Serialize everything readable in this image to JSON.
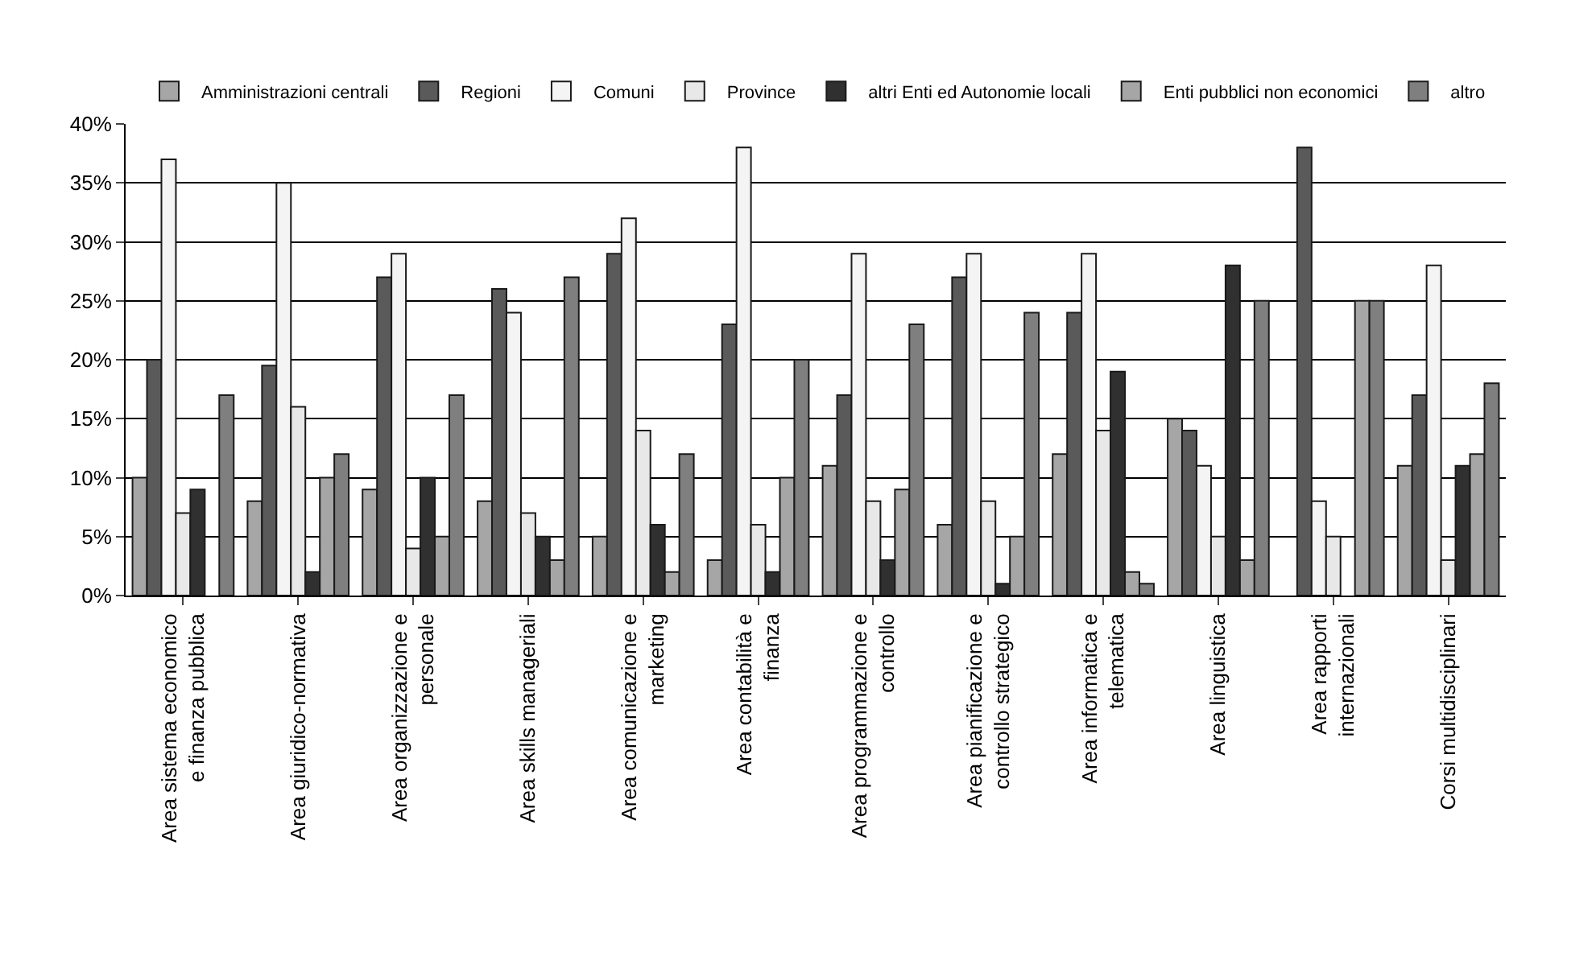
{
  "chart_data": {
    "type": "bar",
    "categories": [
      "Area sistema economico\ne finanza pubblica",
      "Area giuridico-normativa",
      "Area organizzazione e\npersonale",
      "Area skills manageriali",
      "Area comunicazione e\nmarketing",
      "Area contabilità e\nfinanza",
      "Area programmazione e\ncontrollo",
      "Area pianificazione e\ncontrollo strategico",
      "Area informatica e\ntelematica",
      "Area linguistica",
      "Area rapporti\ninternazionali",
      "Corsi multidisciplinari"
    ],
    "series": [
      {
        "name": "Amministrazioni centrali",
        "color": "#a6a6a6",
        "values": [
          10,
          8,
          9,
          8,
          5,
          3,
          11,
          6,
          12,
          15,
          null,
          11
        ]
      },
      {
        "name": "Regioni",
        "color": "#5a5a5a",
        "values": [
          20,
          19.5,
          27,
          26,
          29,
          23,
          17,
          27,
          24,
          14,
          38,
          17
        ]
      },
      {
        "name": "Comuni",
        "color": "#f4f4f4",
        "values": [
          37,
          35,
          29,
          24,
          32,
          38,
          29,
          29,
          29,
          11,
          8,
          28
        ]
      },
      {
        "name": "Province",
        "color": "#e8e8e8",
        "values": [
          7,
          16,
          4,
          7,
          14,
          6,
          8,
          8,
          14,
          5,
          5,
          3
        ]
      },
      {
        "name": "altri Enti ed Autonomie locali",
        "color": "#303030",
        "values": [
          9,
          2,
          10,
          5,
          6,
          2,
          3,
          1,
          19,
          28,
          null,
          11
        ]
      },
      {
        "name": "Enti pubblici non economici",
        "color": "#a6a6a6",
        "values": [
          null,
          10,
          5,
          3,
          2,
          10,
          9,
          5,
          2,
          3,
          25,
          12
        ]
      },
      {
        "name": "altro",
        "color": "#7f7f7f",
        "values": [
          17,
          12,
          17,
          27,
          12,
          20,
          23,
          24,
          1,
          25,
          25,
          18
        ]
      }
    ],
    "ylim": [
      0,
      40
    ],
    "yticks": [
      {
        "value": 0,
        "label": "0%"
      },
      {
        "value": 5,
        "label": "5%"
      },
      {
        "value": 10,
        "label": "10%"
      },
      {
        "value": 15,
        "label": "15%"
      },
      {
        "value": 20,
        "label": "20%"
      },
      {
        "value": 25,
        "label": "25%"
      },
      {
        "value": 30,
        "label": "30%"
      },
      {
        "value": 35,
        "label": "35%"
      },
      {
        "value": 40,
        "label": "40%"
      }
    ],
    "grid": "y",
    "legend": "top"
  }
}
